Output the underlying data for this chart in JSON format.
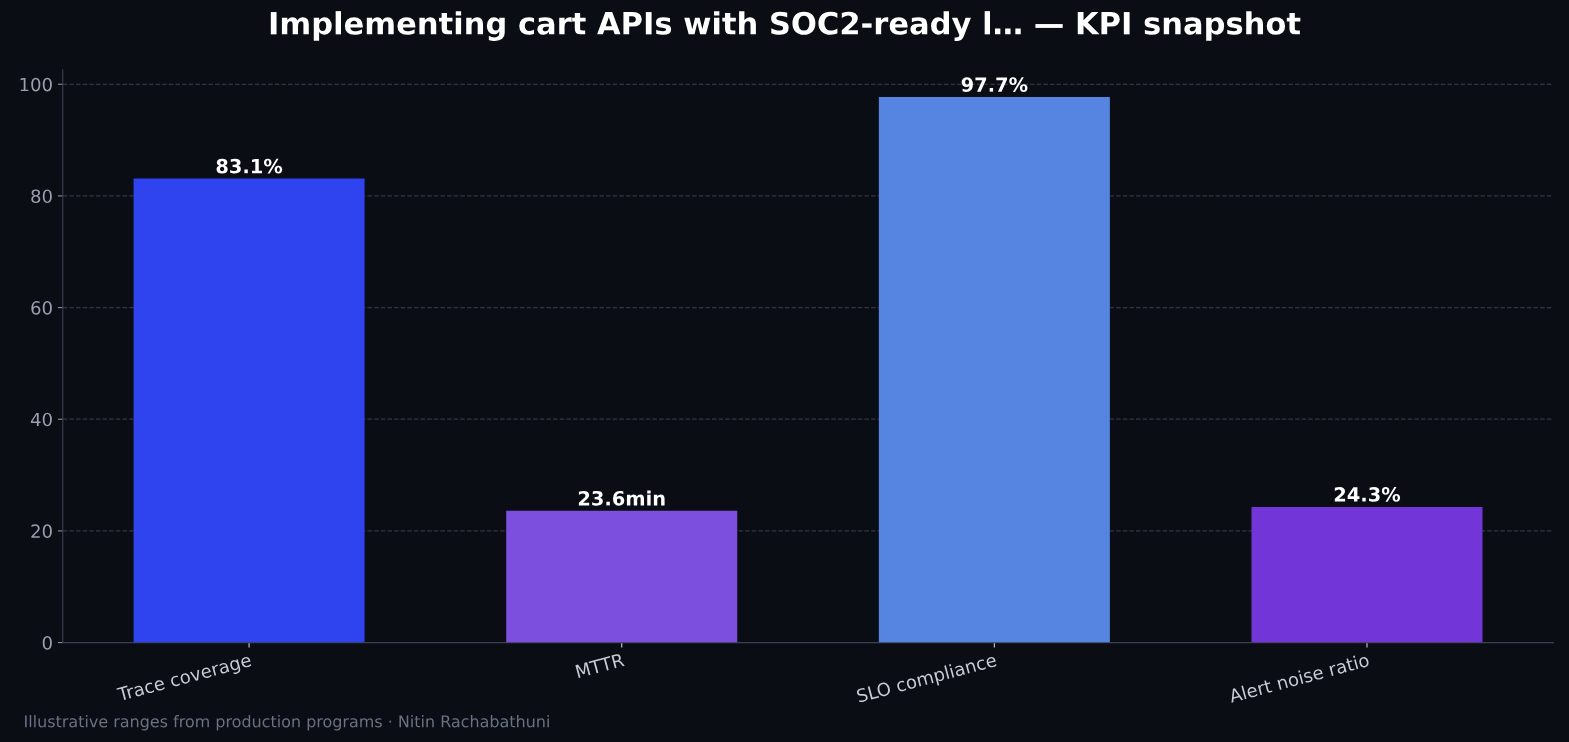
{
  "chart_data": {
    "type": "bar",
    "title": "Implementing cart APIs with SOC2-ready l… — KPI snapshot",
    "categories": [
      "Trace coverage",
      "MTTR",
      "SLO compliance",
      "Alert noise ratio"
    ],
    "values": [
      83.1,
      23.6,
      97.7,
      24.3
    ],
    "colors": [
      "#2f43ee",
      "#7c4fdf",
      "#5585e0",
      "#7236d8"
    ],
    "value_labels": [
      "83.1%",
      "23.6min",
      "97.7%",
      "24.3%"
    ],
    "ylim": [
      0,
      102.6
    ],
    "yticks": [
      0,
      20,
      40,
      60,
      80,
      100
    ],
    "grid": "y",
    "annotations": [
      "Illustrative ranges from production programs · Nitin Rachabathuni"
    ]
  }
}
